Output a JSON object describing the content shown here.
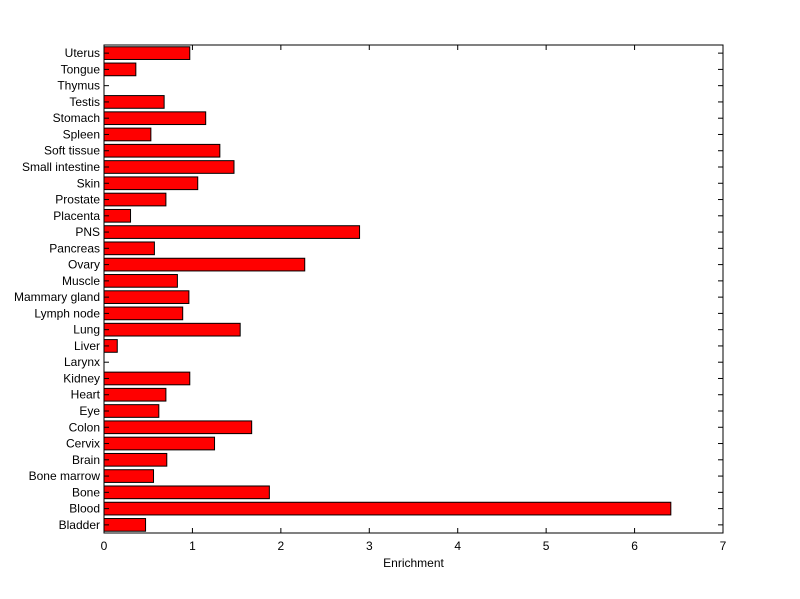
{
  "chart_data": {
    "type": "bar",
    "orientation": "horizontal",
    "title": "",
    "xlabel": "Enrichment",
    "ylabel": "",
    "xlim": [
      0,
      7
    ],
    "xticks": [
      0,
      1,
      2,
      3,
      4,
      5,
      6,
      7
    ],
    "grid": false,
    "legend": "none",
    "bar_color": "#ff0000",
    "categories": [
      "Uterus",
      "Tongue",
      "Thymus",
      "Testis",
      "Stomach",
      "Spleen",
      "Soft tissue",
      "Small intestine",
      "Skin",
      "Prostate",
      "Placenta",
      "PNS",
      "Pancreas",
      "Ovary",
      "Muscle",
      "Mammary gland",
      "Lymph node",
      "Lung",
      "Liver",
      "Larynx",
      "Kidney",
      "Heart",
      "Eye",
      "Colon",
      "Cervix",
      "Brain",
      "Bone marrow",
      "Bone",
      "Blood",
      "Bladder"
    ],
    "values": [
      0.97,
      0.36,
      0,
      0.68,
      1.15,
      0.53,
      1.31,
      1.47,
      1.06,
      0.7,
      0.3,
      2.89,
      0.57,
      2.27,
      0.83,
      0.96,
      0.89,
      1.54,
      0.15,
      0,
      0.97,
      0.7,
      0.62,
      1.67,
      1.25,
      0.71,
      0.56,
      1.87,
      6.41,
      0.47
    ]
  }
}
